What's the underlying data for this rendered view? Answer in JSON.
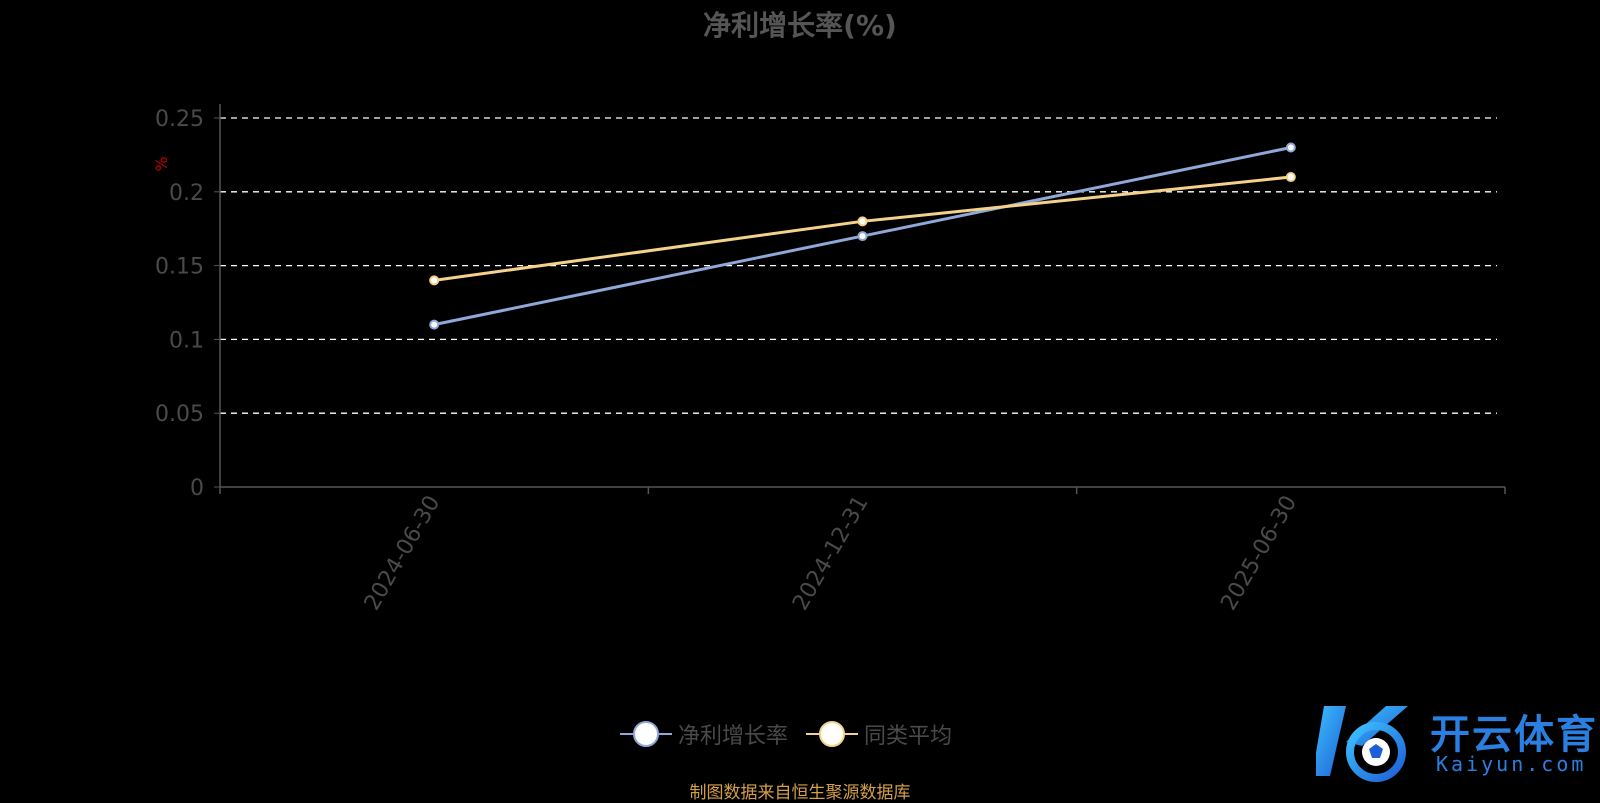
{
  "title": "净利增长率(%)",
  "unit_label": "%",
  "source_note": "制图数据来自恒生聚源数据库",
  "logo": {
    "text_cn": "开云体育",
    "text_en": "Kaiyun.com"
  },
  "colors": {
    "series_main": "#8fa8d8",
    "series_avg": "#f5d28a",
    "grid": "#ffffff",
    "axis": "#555555"
  },
  "chart_data": {
    "type": "line",
    "title": "净利增长率(%)",
    "x": [
      "2024-06-30",
      "2024-12-31",
      "2025-06-30"
    ],
    "ylabel": "%",
    "ylim": [
      0,
      0.25
    ],
    "yticks": [
      0,
      0.05,
      0.1,
      0.15,
      0.2,
      0.25
    ],
    "ytick_labels": [
      "0",
      "0.05",
      "0.1",
      "0.15",
      "0.2",
      "0.25"
    ],
    "grid": true,
    "legend_position": "bottom",
    "series": [
      {
        "name": "净利增长率",
        "values": [
          0.11,
          0.17,
          0.23
        ],
        "color": "#8fa8d8"
      },
      {
        "name": "同类平均",
        "values": [
          0.14,
          0.18,
          0.21
        ],
        "color": "#f5d28a"
      }
    ]
  }
}
